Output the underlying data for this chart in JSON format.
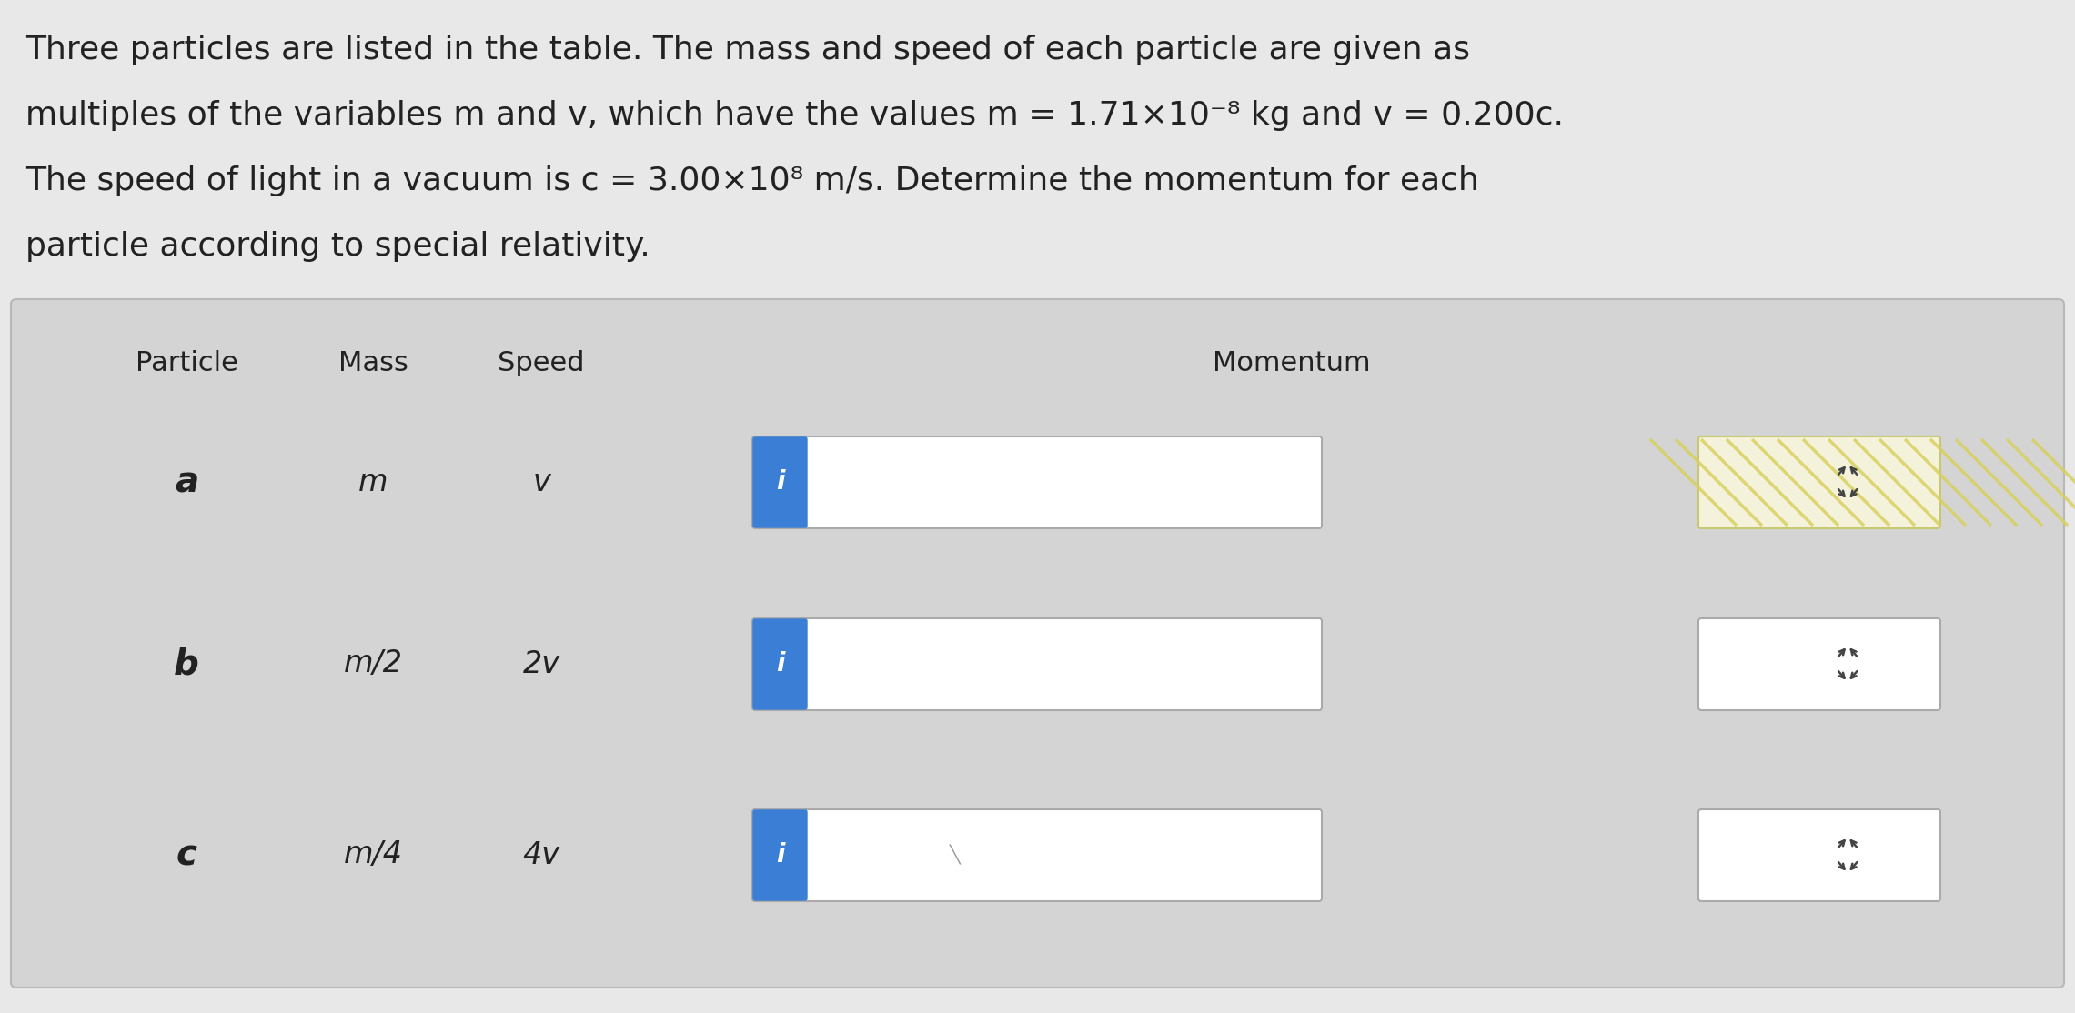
{
  "bg_color": "#e8e8e8",
  "table_bg": "#d8d8d8",
  "white": "#ffffff",
  "blue_btn": "#3a7fd5",
  "text_color": "#222222",
  "particles": [
    "a",
    "b",
    "c"
  ],
  "masses": [
    "m",
    "m/2",
    "m/4"
  ],
  "speeds": [
    "v",
    "2v",
    "4v"
  ],
  "description_lines": [
    "Three particles are listed in the table. The mass and speed of each particle are given as",
    "multiples of the variables m and v, which have the values m = 1.71×10⁻⁸ kg and v = 0.200c.",
    "The speed of light in a vacuum is c = 3.00×10⁸ m/s. Determine the momentum for each",
    "particle according to special relativity."
  ],
  "font_size_desc": 26,
  "font_size_header": 22,
  "font_size_table": 24,
  "spinner_stripe_color": "#d8d060",
  "spinner_bg_row0": "#f5f2dc",
  "spinner_border_row0": "#c8c870"
}
